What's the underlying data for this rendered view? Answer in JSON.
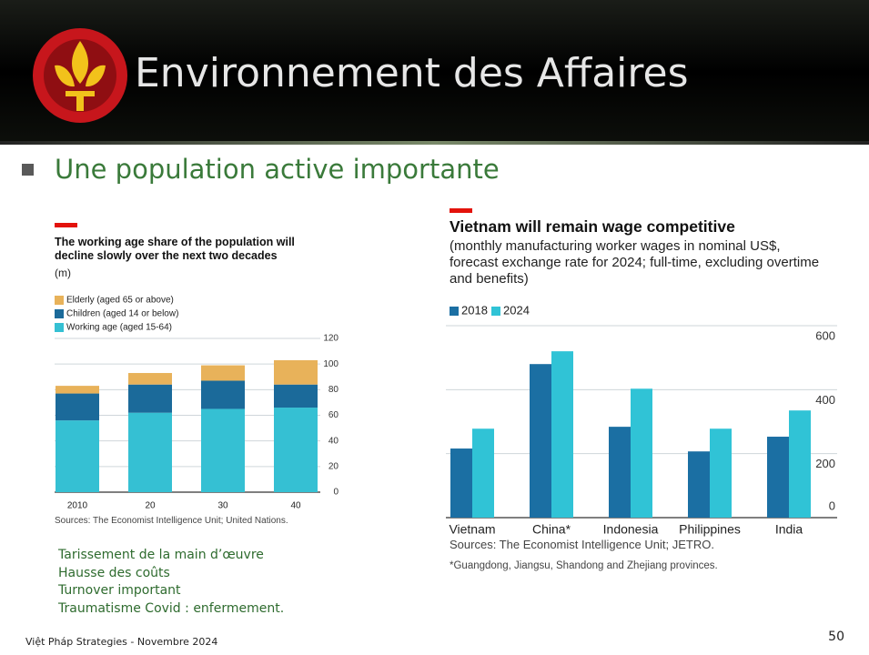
{
  "header": {
    "title": "Environnement des Affaires"
  },
  "heading": "Une population active importante",
  "chart_data": [
    {
      "type": "bar",
      "stacked": true,
      "title": "The working age share of the population will decline slowly over the next two decades",
      "subtitle": "(m)",
      "categories": [
        "2010",
        "20",
        "30",
        "40"
      ],
      "series": [
        {
          "name": "Elderly (aged 65 or above)",
          "color": "#e8b25a",
          "values": [
            6,
            9,
            12,
            19
          ]
        },
        {
          "name": "Children (aged 14 or below)",
          "color": "#1b6a9a",
          "values": [
            21,
            22,
            22,
            18
          ]
        },
        {
          "name": "Working age (aged 15-64)",
          "color": "#35c0d3",
          "values": [
            56,
            62,
            65,
            66
          ]
        }
      ],
      "ylim": [
        0,
        120
      ],
      "yticks": [
        0,
        20,
        40,
        60,
        80,
        100,
        120
      ],
      "grid": true,
      "source": "Sources: The Economist Intelligence Unit; United Nations."
    },
    {
      "type": "bar",
      "stacked": false,
      "title": "Vietnam will remain wage competitive",
      "subtitle": "(monthly manufacturing worker wages in nominal US$, forecast exchange rate for 2024; full-time, excluding overtime and benefits)",
      "categories": [
        "Vietnam",
        "China*",
        "Indonesia",
        "Philippines",
        "India"
      ],
      "series": [
        {
          "name": "2018",
          "color": "#1b6fa3",
          "values": [
            216,
            480,
            284,
            207,
            253
          ]
        },
        {
          "name": "2024",
          "color": "#30c3d6",
          "values": [
            278,
            520,
            403,
            278,
            335
          ]
        }
      ],
      "ylim": [
        0,
        600
      ],
      "yticks": [
        0,
        200,
        400,
        600
      ],
      "grid": true,
      "source": "Sources: The Economist Intelligence Unit; JETRO.",
      "note": "*Guangdong, Jiangsu, Shandong and Zhejiang provinces."
    }
  ],
  "notes": [
    "Tarissement de la main d’œuvre",
    "Hausse des coûts",
    "Turnover important",
    "Traumatisme Covid : enfermement."
  ],
  "footer": "Việt Pháp Strategies - Novembre 2024",
  "page_number": "50"
}
